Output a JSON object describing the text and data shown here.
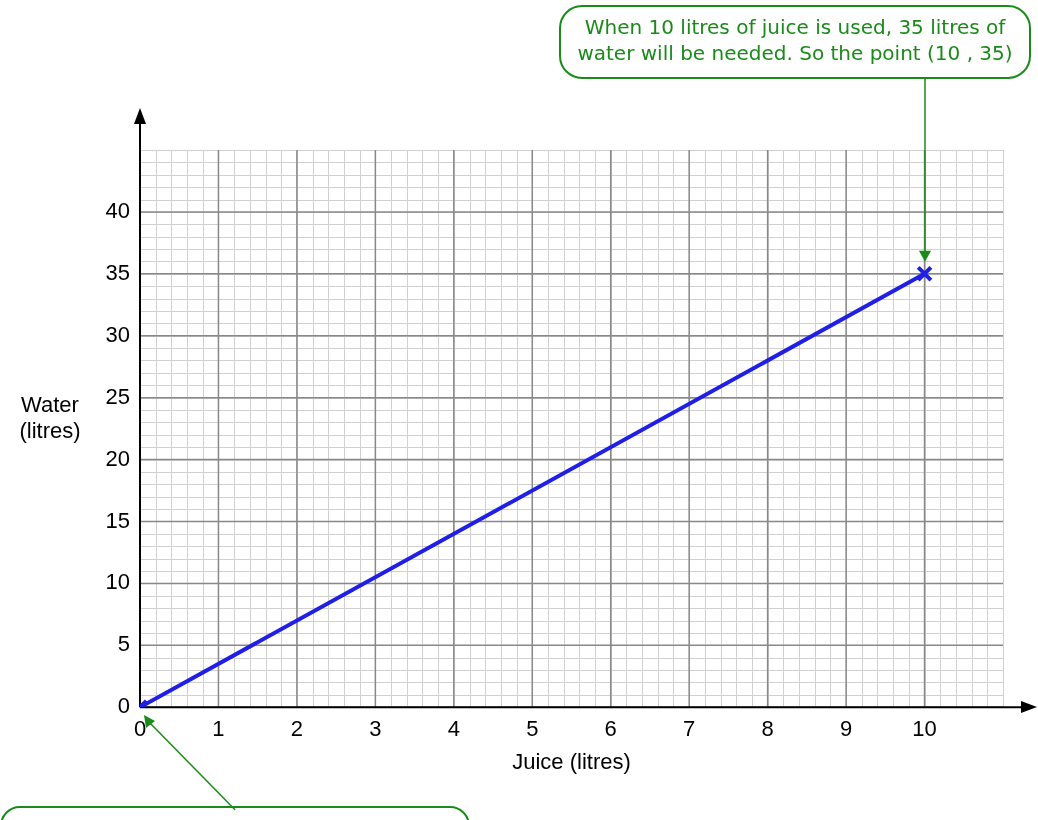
{
  "chart_data": {
    "type": "line",
    "xlabel": "Juice (litres)",
    "ylabel": "Water (litres)",
    "x": [
      0,
      10
    ],
    "series": [
      {
        "color": "#1f1fe6",
        "values": [
          0,
          35
        ]
      }
    ],
    "xlim": [
      0,
      11
    ],
    "xticks": [
      0,
      1,
      2,
      3,
      4,
      5,
      6,
      7,
      8,
      9,
      10
    ],
    "ylim": [
      0,
      45
    ],
    "yticks": [
      0,
      5,
      10,
      15,
      20,
      25,
      30,
      35,
      40
    ],
    "grid": true,
    "legend": false,
    "marker": "cross",
    "line_style": "solid",
    "annotations": [
      "When 10 litres of juice is used, 35 litres of water will be needed. So the point (10 , 35)"
    ]
  }
}
